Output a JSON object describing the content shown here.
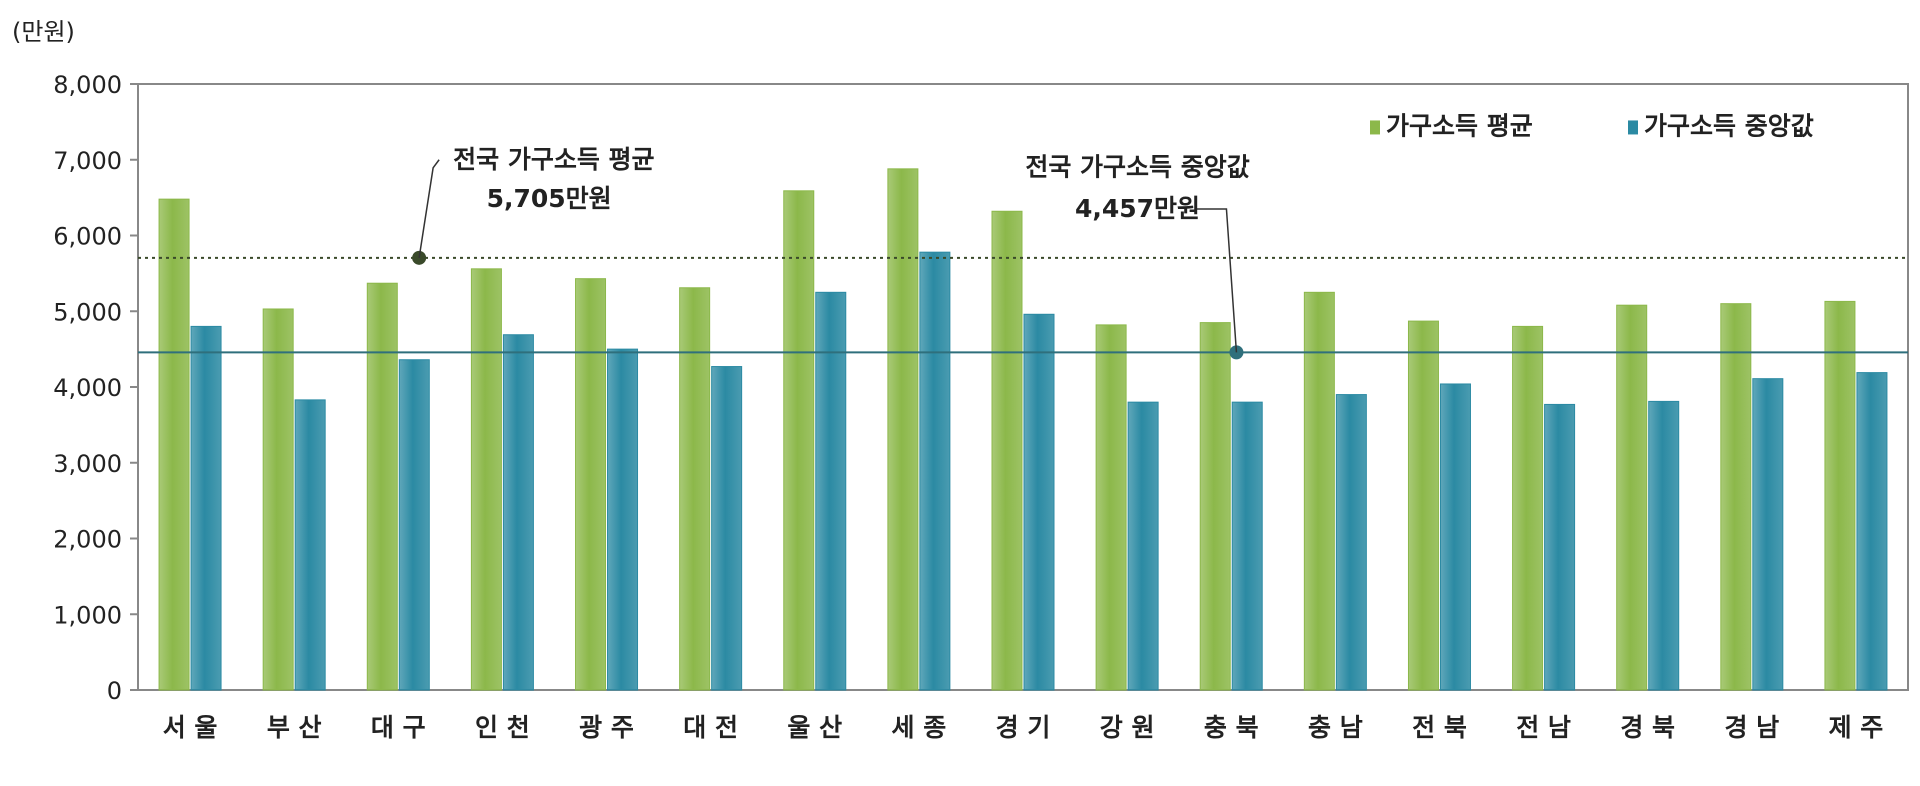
{
  "chart_data": {
    "type": "bar",
    "unit_label": "(만원)",
    "categories": [
      "서 울",
      "부 산",
      "대 구",
      "인 천",
      "광 주",
      "대 전",
      "울 산",
      "세 종",
      "경 기",
      "강 원",
      "충 북",
      "충 남",
      "전 북",
      "전 남",
      "경 북",
      "경 남",
      "제 주"
    ],
    "series": [
      {
        "name": "가구소득 평균",
        "color": "#8cb84a",
        "values": [
          6480,
          5030,
          5370,
          5560,
          5430,
          5310,
          6590,
          6880,
          6320,
          4820,
          4850,
          5250,
          4870,
          4800,
          5080,
          5100,
          5130
        ]
      },
      {
        "name": "가구소득 중앙값",
        "color": "#2b8aa3",
        "values": [
          4800,
          3830,
          4360,
          4690,
          4500,
          4270,
          5250,
          5780,
          4960,
          3800,
          3800,
          3900,
          4040,
          3770,
          3810,
          4110,
          4190
        ]
      }
    ],
    "ylim": [
      0,
      8000
    ],
    "yticks": [
      0,
      1000,
      2000,
      3000,
      4000,
      5000,
      6000,
      7000,
      8000
    ],
    "ytick_labels": [
      "0",
      "1,000",
      "2,000",
      "3,000",
      "4,000",
      "5,000",
      "6,000",
      "7,000",
      "8,000"
    ],
    "reference_lines": [
      {
        "value": 5705,
        "style": "dotted",
        "color": "#3a4a2a",
        "label_lines": [
          "전국 가구소득 평균",
          "5,705만원"
        ],
        "marker_category_index": 2.7
      },
      {
        "value": 4457,
        "style": "solid",
        "color": "#2f6f7c",
        "label_lines": [
          "전국 가구소득 중앙값",
          "4,457만원"
        ],
        "marker_category_index": 10.55
      }
    ],
    "legend_position": "top-right",
    "grid": false
  }
}
